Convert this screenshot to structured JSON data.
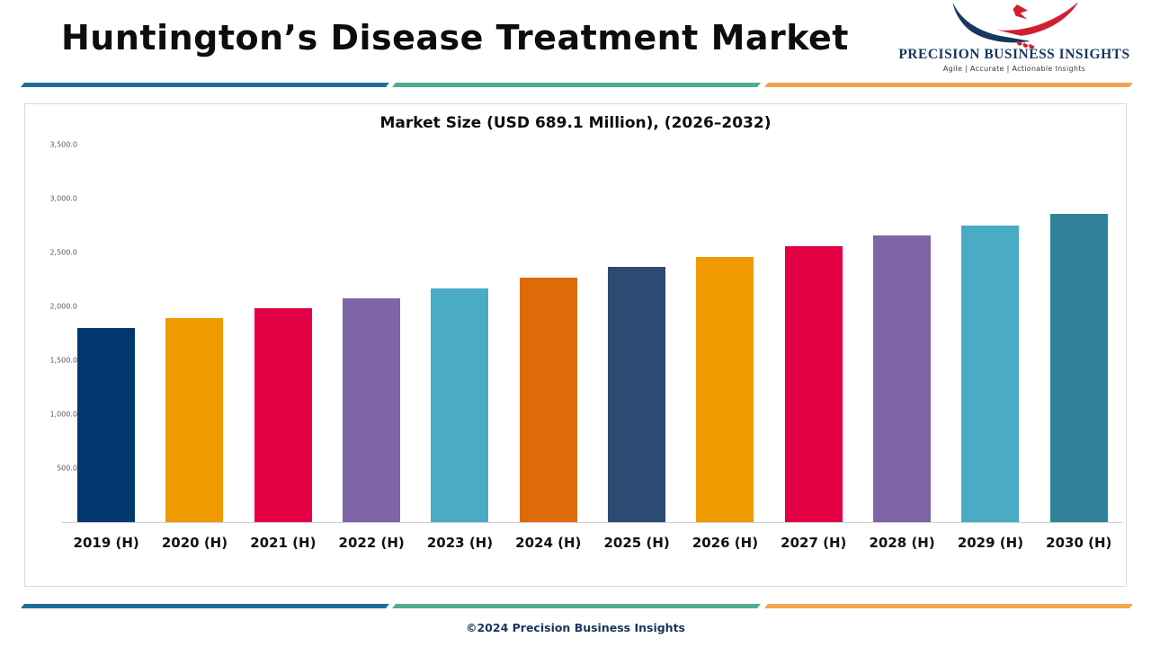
{
  "header": {
    "title": "Huntington’s Disease Treatment Market",
    "logo": {
      "icon": "eagle-logo-icon",
      "name": "PRECISION BUSINESS INSIGHTS",
      "tagline": "Agile | Accurate | Actionable Insights",
      "colors": {
        "navy": "#17375e",
        "red": "#cf2030",
        "text": "#17375e"
      }
    }
  },
  "divider": {
    "blue": "#1f6d99",
    "green": "#50ad8d",
    "orange": "#f2a44f"
  },
  "chart_data": {
    "type": "bar",
    "title": "Market Size (USD 689.1 Million), (2026–2032)",
    "categories": [
      "2019 (H)",
      "2020 (H)",
      "2021 (H)",
      "2022 (H)",
      "2023 (H)",
      "2024 (H)",
      "2025 (H)",
      "2026 (H)",
      "2027 (H)",
      "2028 (H)",
      "2029 (H)",
      "2030 (H)"
    ],
    "values": [
      1800,
      1890,
      1980,
      2075,
      2170,
      2270,
      2365,
      2460,
      2560,
      2655,
      2750,
      2855
    ],
    "bar_colors": [
      "#03386f",
      "#f09900",
      "#e30045",
      "#7d65a6",
      "#4aabc5",
      "#de6b09",
      "#2d4b72",
      "#f09900",
      "#e30045",
      "#7d65a6",
      "#4aabc5",
      "#30839b"
    ],
    "xlabel": "",
    "ylabel": "",
    "ylim": [
      0,
      3500
    ],
    "grid": false,
    "legend": null,
    "yticks": [
      {
        "value": 3500,
        "label": "3,500.0"
      },
      {
        "value": 3000,
        "label": "3,000.0"
      },
      {
        "value": 2500,
        "label": "2,500.0"
      },
      {
        "value": 2000,
        "label": "2,000.0"
      },
      {
        "value": 1500,
        "label": "1,500.0"
      },
      {
        "value": 1000,
        "label": "1,000.0"
      },
      {
        "value": 500,
        "label": "500.0"
      },
      {
        "value": 0,
        "label": "-"
      }
    ]
  },
  "footer": {
    "copyright": "©2024 Precision Business Insights"
  }
}
